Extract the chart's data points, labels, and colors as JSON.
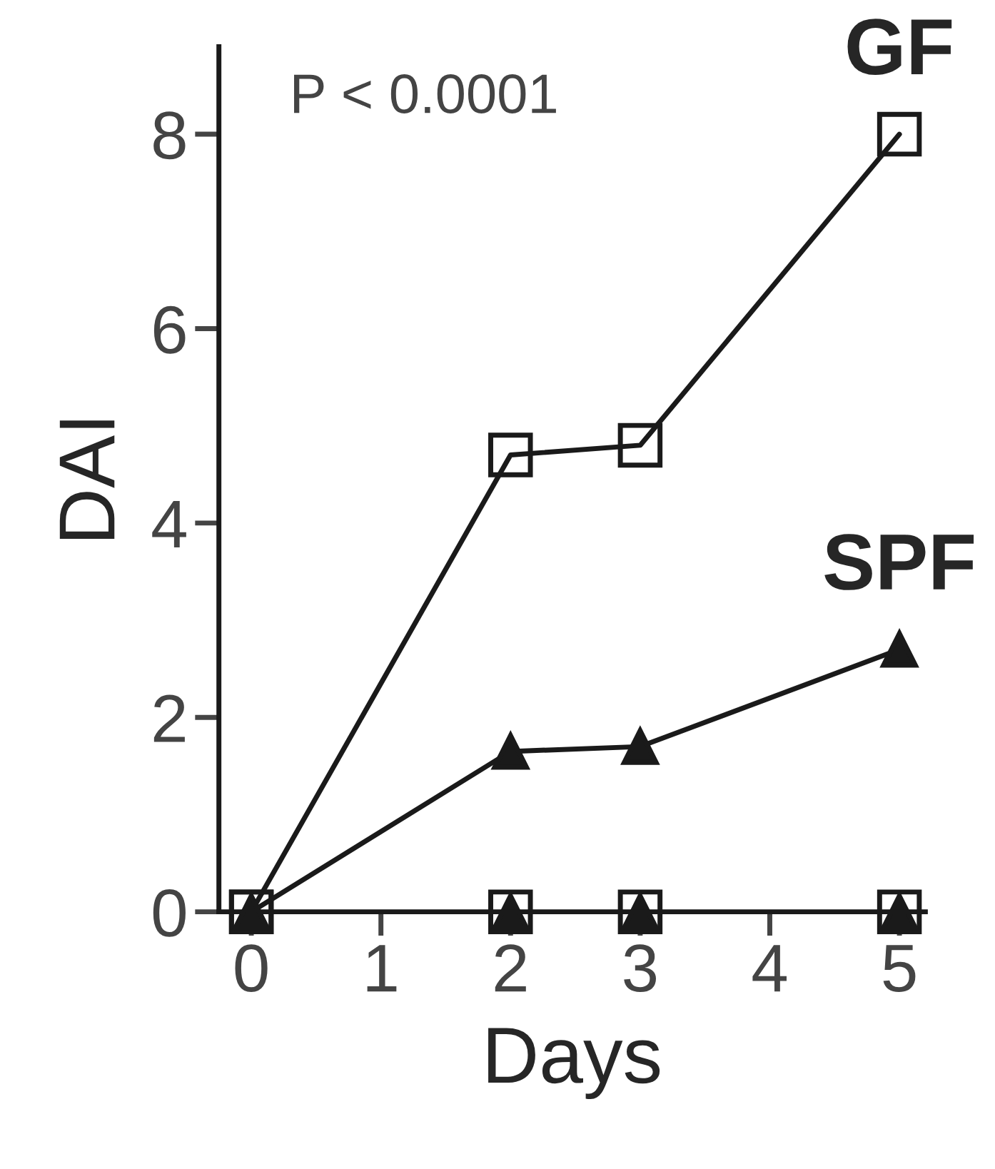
{
  "chart_data": {
    "type": "line",
    "xlabel": "Days",
    "ylabel": "DAI",
    "x": [
      0,
      2,
      3,
      5
    ],
    "series": [
      {
        "name": "GF",
        "color": "#1a1a1a",
        "marker": "square",
        "values": [
          0,
          4.7,
          4.8,
          8
        ]
      },
      {
        "name": "SPF",
        "color": "#1a1a1a",
        "marker": "triangle",
        "values": [
          0,
          1.65,
          1.7,
          2.7
        ]
      },
      {
        "type": "scatter",
        "color": "#1a1a1a",
        "marker": "square",
        "values": [
          0,
          0,
          0,
          0
        ]
      },
      {
        "type": "scatter",
        "color": "#1a1a1a",
        "marker": "triangle",
        "values": [
          null,
          0,
          0,
          0
        ]
      }
    ],
    "xlim": [
      -0.25,
      5.2
    ],
    "xticks": [
      0,
      1,
      2,
      3,
      4,
      5
    ],
    "ylim": [
      0,
      8.9
    ],
    "yticks": [
      0,
      2,
      4,
      6,
      8
    ],
    "annotations": [
      "P < 0.0001"
    ],
    "grid": false,
    "legend": false,
    "line_style": "solid"
  }
}
